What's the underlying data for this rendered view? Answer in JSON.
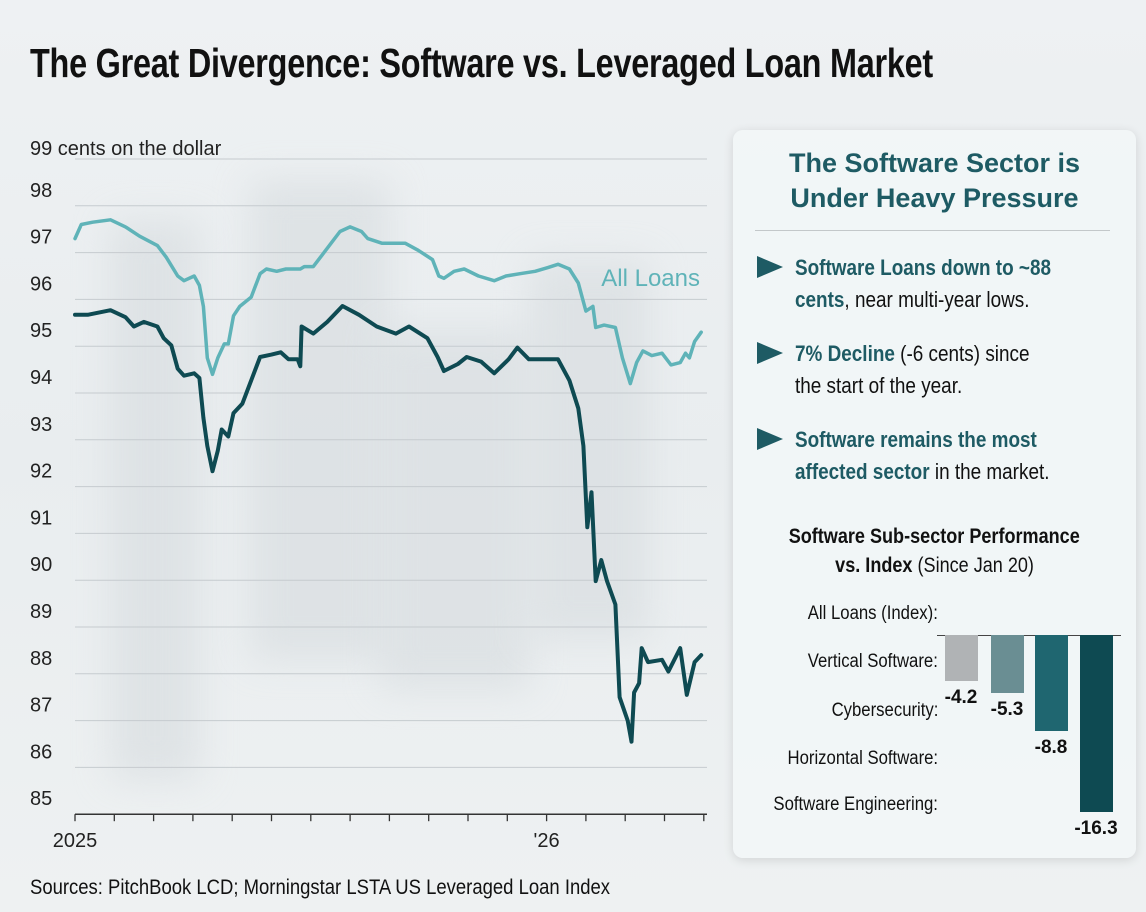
{
  "title": "The Great Divergence: Software vs. Leveraged Loan Market",
  "sources": "Sources: PitchBook LCD; Morningstar LSTA US Leveraged Loan Index",
  "colors": {
    "all_loans": "#5fb3b8",
    "software": "#0e4a52",
    "accent": "#1e5b64"
  },
  "chart_data": [
    {
      "type": "line",
      "ylabel": "cents on the dollar",
      "ylim": [
        85,
        99
      ],
      "yticks": [
        "85",
        "86",
        "87",
        "88",
        "89",
        "90",
        "91",
        "92",
        "93",
        "94",
        "95",
        "96",
        "97",
        "98",
        "99"
      ],
      "xlim": [
        "2025-01-01",
        "2026-05-01"
      ],
      "xtick_labels": [
        {
          "date": "2025-01-01",
          "label": "2025"
        },
        {
          "date": "2026-01-01",
          "label": "'26"
        }
      ],
      "x_minor_ticks": "monthly",
      "grid": true,
      "series": [
        {
          "name": "All Loans",
          "color": "#5fb3b8",
          "points": [
            [
              "2025-01-01",
              97.3
            ],
            [
              "2025-01-06",
              97.6
            ],
            [
              "2025-01-15",
              97.65
            ],
            [
              "2025-01-29",
              97.7
            ],
            [
              "2025-02-09",
              97.55
            ],
            [
              "2025-02-19",
              97.35
            ],
            [
              "2025-03-04",
              97.15
            ],
            [
              "2025-03-11",
              96.9
            ],
            [
              "2025-03-20",
              96.5
            ],
            [
              "2025-03-25",
              96.4
            ],
            [
              "2025-04-02",
              96.5
            ],
            [
              "2025-04-06",
              96.3
            ],
            [
              "2025-04-09",
              95.85
            ],
            [
              "2025-04-12",
              94.75
            ],
            [
              "2025-04-16",
              94.4
            ],
            [
              "2025-04-20",
              94.75
            ],
            [
              "2025-04-25",
              95.05
            ],
            [
              "2025-04-28",
              95.05
            ],
            [
              "2025-05-02",
              95.65
            ],
            [
              "2025-05-07",
              95.85
            ],
            [
              "2025-05-16",
              96.05
            ],
            [
              "2025-05-23",
              96.55
            ],
            [
              "2025-05-28",
              96.65
            ],
            [
              "2025-06-05",
              96.6
            ],
            [
              "2025-06-12",
              96.65
            ],
            [
              "2025-06-23",
              96.65
            ],
            [
              "2025-06-26",
              96.7
            ],
            [
              "2025-07-03",
              96.7
            ],
            [
              "2025-07-10",
              96.95
            ],
            [
              "2025-07-17",
              97.2
            ],
            [
              "2025-07-24",
              97.45
            ],
            [
              "2025-08-01",
              97.55
            ],
            [
              "2025-08-10",
              97.45
            ],
            [
              "2025-08-15",
              97.3
            ],
            [
              "2025-08-26",
              97.2
            ],
            [
              "2025-09-13",
              97.2
            ],
            [
              "2025-09-23",
              97.05
            ],
            [
              "2025-10-04",
              96.85
            ],
            [
              "2025-10-09",
              96.5
            ],
            [
              "2025-10-13",
              96.45
            ],
            [
              "2025-10-21",
              96.6
            ],
            [
              "2025-10-29",
              96.65
            ],
            [
              "2025-11-09",
              96.5
            ],
            [
              "2025-11-21",
              96.4
            ],
            [
              "2025-11-30",
              96.5
            ],
            [
              "2025-12-11",
              96.55
            ],
            [
              "2025-12-23",
              96.6
            ],
            [
              "2026-01-02",
              96.68
            ],
            [
              "2026-01-10",
              96.75
            ],
            [
              "2026-01-19",
              96.65
            ],
            [
              "2026-01-26",
              96.35
            ],
            [
              "2026-02-01",
              95.75
            ],
            [
              "2026-02-06",
              95.85
            ],
            [
              "2026-02-08",
              95.4
            ],
            [
              "2026-02-14",
              95.45
            ],
            [
              "2026-02-22",
              95.4
            ],
            [
              "2026-02-27",
              94.75
            ],
            [
              "2026-03-05",
              94.2
            ],
            [
              "2026-03-10",
              94.65
            ],
            [
              "2026-03-15",
              94.9
            ],
            [
              "2026-03-22",
              94.8
            ],
            [
              "2026-03-30",
              94.85
            ],
            [
              "2026-04-06",
              94.6
            ],
            [
              "2026-04-13",
              94.65
            ],
            [
              "2026-04-17",
              94.85
            ],
            [
              "2026-04-20",
              94.75
            ],
            [
              "2026-04-24",
              95.1
            ],
            [
              "2026-04-29",
              95.3
            ]
          ]
        },
        {
          "color": "#0e4a52",
          "points": [
            [
              "2025-01-01",
              95.67
            ],
            [
              "2025-01-11",
              95.67
            ],
            [
              "2025-01-29",
              95.77
            ],
            [
              "2025-02-09",
              95.62
            ],
            [
              "2025-02-15",
              95.42
            ],
            [
              "2025-02-22",
              95.52
            ],
            [
              "2025-03-04",
              95.42
            ],
            [
              "2025-03-09",
              95.17
            ],
            [
              "2025-03-15",
              95.02
            ],
            [
              "2025-03-20",
              94.52
            ],
            [
              "2025-03-25",
              94.37
            ],
            [
              "2025-04-02",
              94.42
            ],
            [
              "2025-04-06",
              94.32
            ],
            [
              "2025-04-09",
              93.47
            ],
            [
              "2025-04-12",
              92.87
            ],
            [
              "2025-04-16",
              92.33
            ],
            [
              "2025-04-20",
              92.77
            ],
            [
              "2025-04-23",
              93.22
            ],
            [
              "2025-04-28",
              93.07
            ],
            [
              "2025-05-02",
              93.57
            ],
            [
              "2025-05-09",
              93.77
            ],
            [
              "2025-05-16",
              94.27
            ],
            [
              "2025-05-23",
              94.77
            ],
            [
              "2025-06-01",
              94.82
            ],
            [
              "2025-06-08",
              94.87
            ],
            [
              "2025-06-14",
              94.72
            ],
            [
              "2025-06-21",
              94.72
            ],
            [
              "2025-06-23",
              94.57
            ],
            [
              "2025-06-24",
              95.42
            ],
            [
              "2025-07-03",
              95.27
            ],
            [
              "2025-07-14",
              95.52
            ],
            [
              "2025-07-26",
              95.86
            ],
            [
              "2025-08-08",
              95.67
            ],
            [
              "2025-08-22",
              95.42
            ],
            [
              "2025-09-06",
              95.27
            ],
            [
              "2025-09-16",
              95.42
            ],
            [
              "2025-09-30",
              95.17
            ],
            [
              "2025-10-08",
              94.77
            ],
            [
              "2025-10-13",
              94.47
            ],
            [
              "2025-10-24",
              94.62
            ],
            [
              "2025-10-31",
              94.77
            ],
            [
              "2025-11-11",
              94.67
            ],
            [
              "2025-11-21",
              94.42
            ],
            [
              "2025-12-02",
              94.72
            ],
            [
              "2025-12-09",
              94.97
            ],
            [
              "2025-12-18",
              94.72
            ],
            [
              "2026-01-05",
              94.72
            ],
            [
              "2026-01-10",
              94.72
            ],
            [
              "2026-01-19",
              94.27
            ],
            [
              "2026-01-26",
              93.67
            ],
            [
              "2026-01-30",
              92.87
            ],
            [
              "2026-02-02",
              91.13
            ],
            [
              "2026-02-05",
              91.88
            ],
            [
              "2026-02-08",
              89.98
            ],
            [
              "2026-02-12",
              90.43
            ],
            [
              "2026-02-16",
              89.98
            ],
            [
              "2026-02-22",
              89.48
            ],
            [
              "2026-02-25",
              87.5
            ],
            [
              "2026-03-03",
              87.0
            ],
            [
              "2026-03-06",
              86.55
            ],
            [
              "2026-03-08",
              87.6
            ],
            [
              "2026-03-12",
              87.8
            ],
            [
              "2026-03-14",
              88.55
            ],
            [
              "2026-03-19",
              88.25
            ],
            [
              "2026-03-30",
              88.3
            ],
            [
              "2026-04-04",
              88.05
            ],
            [
              "2026-04-13",
              88.55
            ],
            [
              "2026-04-18",
              87.55
            ],
            [
              "2026-04-24",
              88.25
            ],
            [
              "2026-04-29",
              88.4
            ]
          ]
        }
      ],
      "annotations": [
        {
          "text": "All Loans",
          "series": "All Loans"
        }
      ]
    },
    {
      "type": "bar",
      "title_bold": "Software Sub-sector Performance vs. Index",
      "title_normal": "(Since Jan 20)",
      "index_label": "All Loans (Index):",
      "categories": [
        "Vertical Software:",
        "Cybersecurity:",
        "Horizontal Software:",
        "Software Engineering:"
      ],
      "values": [
        -4.2,
        -5.3,
        -8.8,
        -16.3
      ],
      "value_labels": [
        "-4.2",
        "-5.3",
        "-8.8",
        "-16.3"
      ],
      "colors": [
        "#b0b3b5",
        "#6a8e93",
        "#1f6670",
        "#0e4a52"
      ]
    }
  ],
  "panel": {
    "title_line1": "The Software Sector is",
    "title_line2": "Under Heavy Pressure",
    "bullet_icon": "arrowhead-icon",
    "bullets": [
      {
        "bold1": "Software Loans down to ~88",
        "bold2": "cents",
        "rest": ", near multi-year lows."
      },
      {
        "bold1": "7% Decline",
        "rest1": " (-6 cents) since",
        "rest2": "the start of the year."
      },
      {
        "bold1": "Software remains the most",
        "bold2": "affected sector",
        "rest": " in the market."
      }
    ],
    "sub_title_bold1": "Software Sub-sector Performance",
    "sub_title_bold2": "vs. Index",
    "sub_title_normal": " (Since Jan 20)"
  }
}
